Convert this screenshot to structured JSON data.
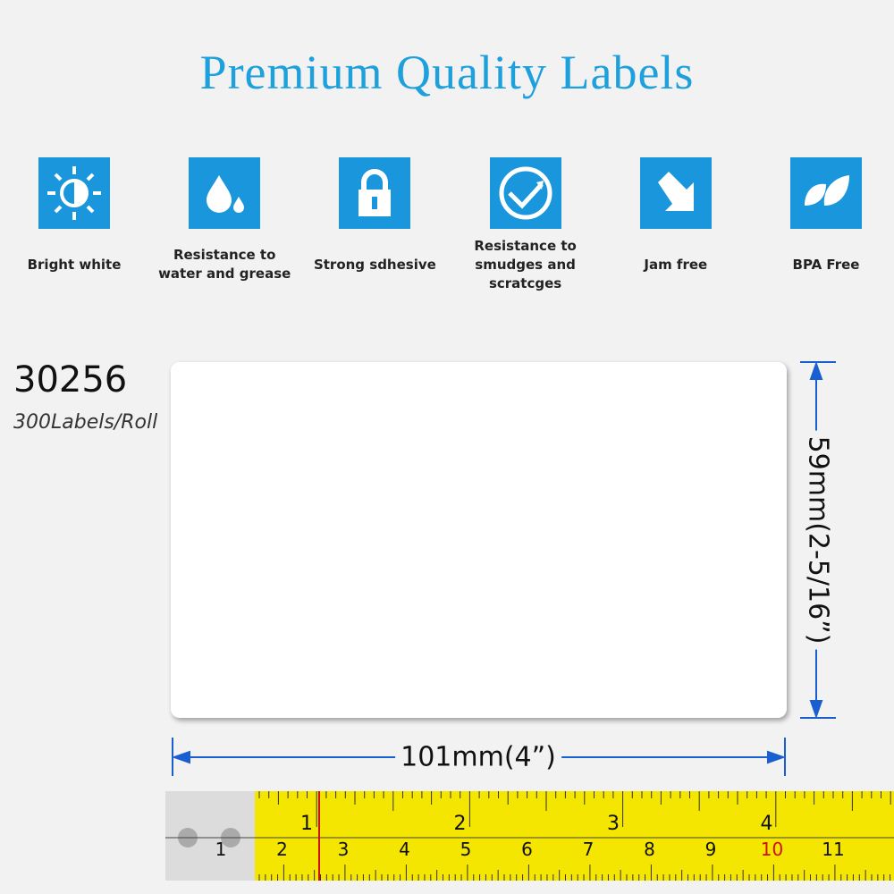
{
  "title": "Premium Quality Labels",
  "features": [
    {
      "lines": [
        "Bright white"
      ]
    },
    {
      "lines": [
        "Resistance to",
        "water and grease"
      ]
    },
    {
      "lines": [
        "Strong sdhesive"
      ]
    },
    {
      "lines": [
        "Resistance to",
        "smudges and scratcges"
      ]
    },
    {
      "lines": [
        "Jam free"
      ]
    },
    {
      "lines": [
        "BPA Free"
      ]
    }
  ],
  "product": {
    "code": "30256",
    "per_roll": "300Labels/Roll"
  },
  "dimensions": {
    "height": "59mm(2-5/16”)",
    "width": "101mm(4”)"
  },
  "tape": {
    "inches": [
      "1",
      "2",
      "3",
      "4"
    ],
    "cm": [
      "1",
      "2",
      "3",
      "4",
      "5",
      "6",
      "7",
      "8",
      "9",
      "10",
      "11"
    ]
  }
}
